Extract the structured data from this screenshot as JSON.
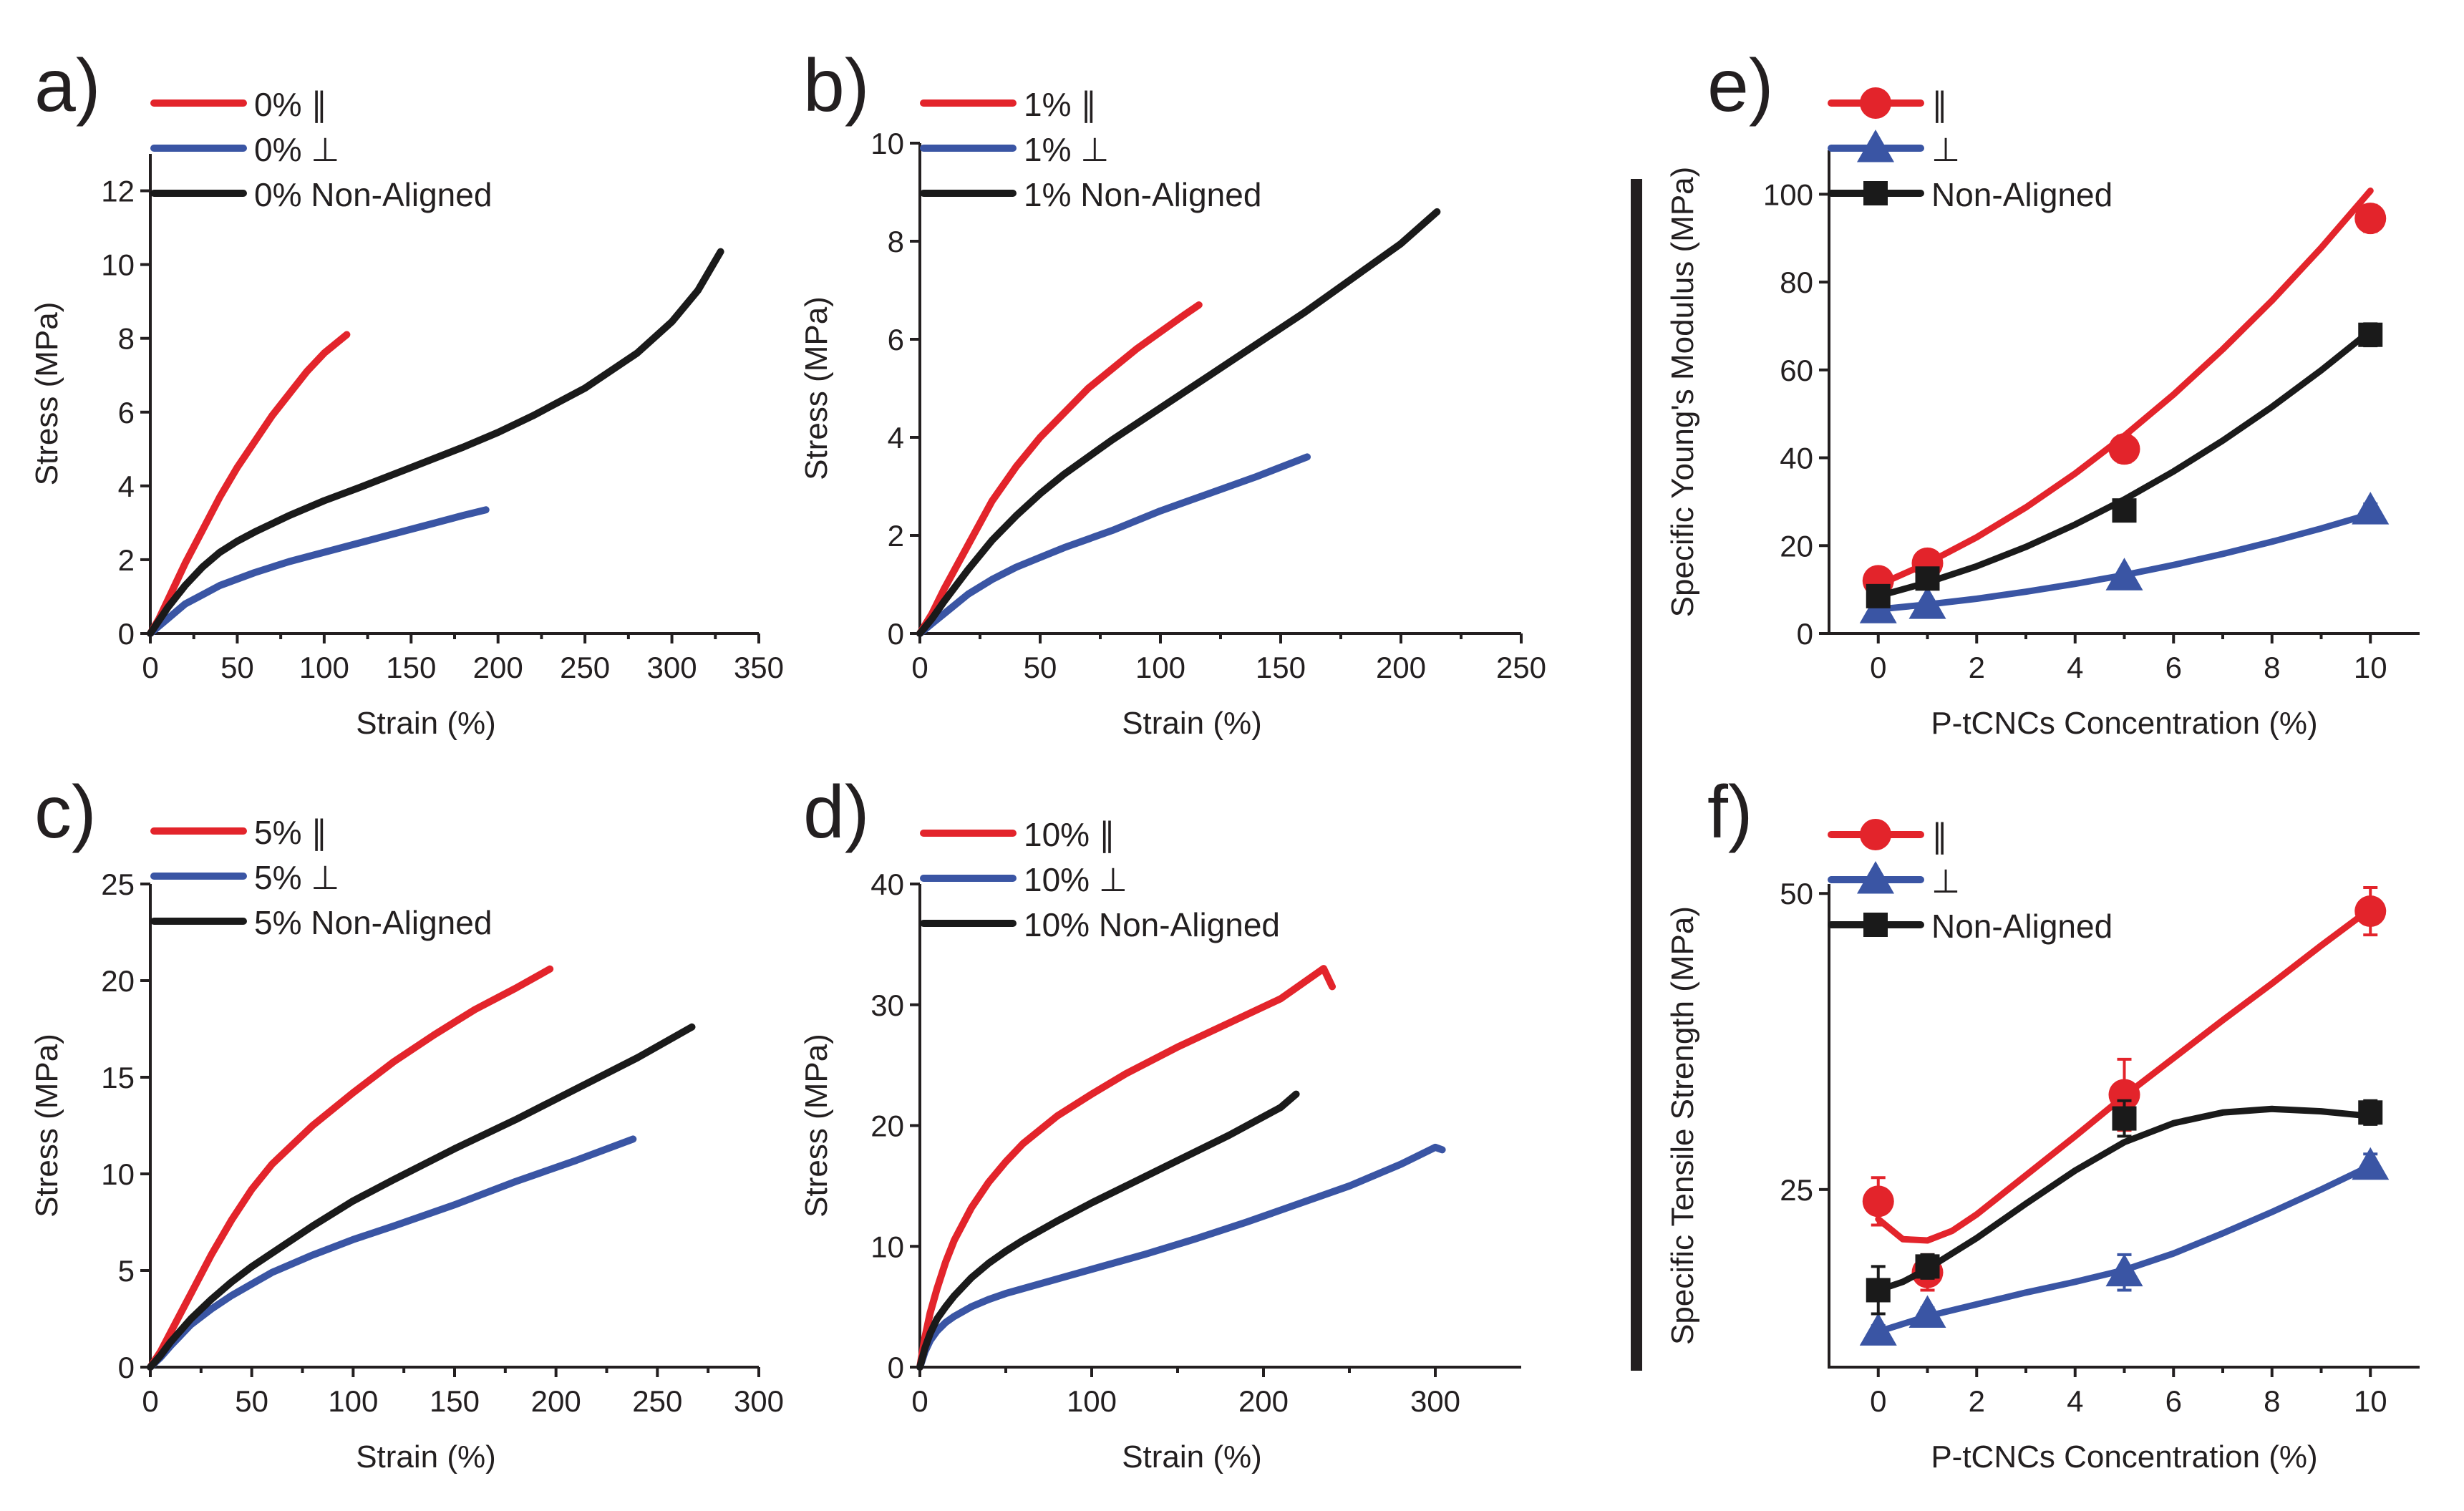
{
  "colors": {
    "parallel": "#e3242b",
    "perpendicular": "#3a55a4",
    "non_aligned": "#1a1a1a",
    "axis": "#231f20",
    "divider": "#231f20"
  },
  "chart_data": [
    {
      "id": "a",
      "panel_label": "a)",
      "type": "line",
      "xlabel": "Strain (%)",
      "ylabel": "Stress (MPa)",
      "xlim": [
        0,
        350
      ],
      "ylim": [
        0,
        13
      ],
      "xticks": [
        0,
        50,
        100,
        150,
        200,
        250,
        300,
        350
      ],
      "yticks": [
        0,
        2,
        4,
        6,
        8,
        10,
        12
      ],
      "series": [
        {
          "name": "0% ∥",
          "color_key": "parallel",
          "x": [
            0,
            5,
            10,
            20,
            30,
            40,
            50,
            60,
            70,
            80,
            90,
            100,
            113
          ],
          "y": [
            0,
            0.4,
            0.9,
            1.9,
            2.8,
            3.7,
            4.5,
            5.2,
            5.9,
            6.5,
            7.1,
            7.6,
            8.1
          ]
        },
        {
          "name": "0% ⊥",
          "color_key": "perpendicular",
          "x": [
            0,
            5,
            10,
            20,
            30,
            40,
            60,
            80,
            100,
            120,
            140,
            160,
            180,
            193
          ],
          "y": [
            0,
            0.2,
            0.4,
            0.8,
            1.05,
            1.3,
            1.65,
            1.95,
            2.2,
            2.45,
            2.7,
            2.95,
            3.2,
            3.35
          ]
        },
        {
          "name": "0% Non-Aligned",
          "color_key": "non_aligned",
          "x": [
            0,
            5,
            10,
            20,
            30,
            40,
            50,
            60,
            80,
            100,
            120,
            150,
            180,
            200,
            220,
            250,
            280,
            300,
            315,
            328
          ],
          "y": [
            0,
            0.35,
            0.7,
            1.3,
            1.8,
            2.2,
            2.5,
            2.75,
            3.2,
            3.6,
            3.95,
            4.5,
            5.05,
            5.45,
            5.9,
            6.65,
            7.6,
            8.45,
            9.3,
            10.35
          ]
        }
      ]
    },
    {
      "id": "b",
      "panel_label": "b)",
      "type": "line",
      "xlabel": "Strain (%)",
      "ylabel": "Stress (MPa)",
      "xlim": [
        0,
        250
      ],
      "ylim": [
        0,
        10
      ],
      "xticks": [
        0,
        50,
        100,
        150,
        200,
        250
      ],
      "yticks": [
        0,
        2,
        4,
        6,
        8,
        10
      ],
      "series": [
        {
          "name": "1% ∥",
          "color_key": "parallel",
          "x": [
            0,
            5,
            10,
            20,
            30,
            40,
            50,
            60,
            70,
            80,
            90,
            100,
            110,
            116
          ],
          "y": [
            0,
            0.4,
            0.9,
            1.8,
            2.7,
            3.4,
            4.0,
            4.5,
            5.0,
            5.4,
            5.8,
            6.15,
            6.5,
            6.7
          ]
        },
        {
          "name": "1% ⊥",
          "color_key": "perpendicular",
          "x": [
            0,
            5,
            10,
            20,
            30,
            40,
            50,
            60,
            80,
            100,
            120,
            140,
            161
          ],
          "y": [
            0,
            0.2,
            0.4,
            0.8,
            1.1,
            1.35,
            1.55,
            1.75,
            2.1,
            2.5,
            2.85,
            3.2,
            3.6
          ]
        },
        {
          "name": "1% Non-Aligned",
          "color_key": "non_aligned",
          "x": [
            0,
            5,
            10,
            20,
            30,
            40,
            50,
            60,
            80,
            100,
            120,
            140,
            160,
            180,
            200,
            215
          ],
          "y": [
            0,
            0.3,
            0.65,
            1.3,
            1.9,
            2.4,
            2.85,
            3.25,
            3.95,
            4.6,
            5.25,
            5.9,
            6.55,
            7.25,
            7.95,
            8.6
          ]
        }
      ]
    },
    {
      "id": "c",
      "panel_label": "c)",
      "type": "line",
      "xlabel": "Strain (%)",
      "ylabel": "Stress (MPa)",
      "xlim": [
        0,
        300
      ],
      "ylim": [
        0,
        25
      ],
      "xticks": [
        0,
        50,
        100,
        150,
        200,
        250,
        300
      ],
      "yticks": [
        0,
        5,
        10,
        15,
        20,
        25
      ],
      "series": [
        {
          "name": "5% ∥",
          "color_key": "parallel",
          "x": [
            0,
            5,
            10,
            20,
            30,
            40,
            50,
            60,
            80,
            100,
            120,
            140,
            160,
            180,
            197
          ],
          "y": [
            0,
            0.8,
            1.8,
            3.8,
            5.8,
            7.6,
            9.2,
            10.5,
            12.5,
            14.2,
            15.8,
            17.2,
            18.5,
            19.6,
            20.6
          ]
        },
        {
          "name": "5% ⊥",
          "color_key": "perpendicular",
          "x": [
            0,
            5,
            10,
            20,
            30,
            40,
            50,
            60,
            80,
            100,
            120,
            150,
            180,
            210,
            238
          ],
          "y": [
            0,
            0.5,
            1.1,
            2.2,
            3.0,
            3.7,
            4.3,
            4.9,
            5.8,
            6.6,
            7.3,
            8.4,
            9.6,
            10.7,
            11.8
          ]
        },
        {
          "name": "5% Non-Aligned",
          "color_key": "non_aligned",
          "x": [
            0,
            5,
            10,
            20,
            30,
            40,
            50,
            60,
            80,
            100,
            120,
            150,
            180,
            210,
            240,
            267
          ],
          "y": [
            0,
            0.6,
            1.3,
            2.5,
            3.5,
            4.4,
            5.2,
            5.9,
            7.3,
            8.6,
            9.7,
            11.3,
            12.8,
            14.4,
            16.0,
            17.6
          ]
        }
      ]
    },
    {
      "id": "d",
      "panel_label": "d)",
      "type": "line",
      "xlabel": "Strain (%)",
      "ylabel": "Stress (MPa)",
      "xlim": [
        0,
        350
      ],
      "ylim": [
        0,
        40
      ],
      "xticks": [
        0,
        100,
        200,
        300
      ],
      "yticks": [
        0,
        10,
        20,
        30,
        40
      ],
      "series": [
        {
          "name": "10% ∥",
          "color_key": "parallel",
          "x": [
            0,
            3,
            6,
            10,
            15,
            20,
            30,
            40,
            50,
            60,
            80,
            100,
            120,
            150,
            180,
            210,
            235,
            240
          ],
          "y": [
            0,
            2.5,
            4.5,
            6.5,
            8.7,
            10.5,
            13.2,
            15.3,
            17.0,
            18.5,
            20.8,
            22.6,
            24.3,
            26.5,
            28.5,
            30.5,
            33.0,
            31.5
          ]
        },
        {
          "name": "10% ⊥",
          "color_key": "perpendicular",
          "x": [
            0,
            3,
            6,
            10,
            15,
            20,
            30,
            40,
            50,
            60,
            80,
            100,
            130,
            160,
            190,
            220,
            250,
            280,
            300,
            304
          ],
          "y": [
            0,
            1.3,
            2.2,
            3.0,
            3.7,
            4.2,
            5.0,
            5.6,
            6.1,
            6.5,
            7.3,
            8.1,
            9.3,
            10.6,
            12.0,
            13.5,
            15.0,
            16.8,
            18.2,
            18.0
          ]
        },
        {
          "name": "10% Non-Aligned",
          "color_key": "non_aligned",
          "x": [
            0,
            3,
            6,
            10,
            15,
            20,
            30,
            40,
            50,
            60,
            80,
            100,
            120,
            150,
            180,
            210,
            219
          ],
          "y": [
            0,
            1.6,
            2.8,
            4.0,
            5.0,
            5.9,
            7.4,
            8.6,
            9.6,
            10.5,
            12.1,
            13.6,
            15.0,
            17.1,
            19.2,
            21.5,
            22.6
          ]
        }
      ]
    },
    {
      "id": "e",
      "panel_label": "e)",
      "type": "line",
      "xlabel": "P-tCNCs Concentration (%)",
      "ylabel": "Specific Young's Modulus (MPa)",
      "xlim": [
        -1,
        11
      ],
      "ylim": [
        0,
        110
      ],
      "xticks": [
        0,
        2,
        4,
        6,
        8,
        10
      ],
      "yticks": [
        0,
        20,
        40,
        60,
        80,
        100
      ],
      "series": [
        {
          "name": "∥",
          "color_key": "parallel",
          "marker": "circle",
          "x": [
            0,
            1,
            5,
            10
          ],
          "y": [
            12,
            16,
            42,
            94.5
          ],
          "yerr": [
            1.5,
            1.5,
            3,
            3
          ],
          "fit_x": [
            0,
            1,
            2,
            3,
            4,
            5,
            6,
            7,
            8,
            9,
            10
          ],
          "fit_y": [
            11,
            16,
            21.9,
            28.7,
            36.4,
            45,
            54.4,
            64.7,
            75.8,
            87.8,
            100.8
          ]
        },
        {
          "name": "⊥",
          "color_key": "perpendicular",
          "marker": "triangle",
          "x": [
            0,
            1,
            5,
            10
          ],
          "y": [
            5.5,
            6.5,
            13,
            28
          ],
          "yerr": [
            1,
            1,
            1,
            1.5
          ],
          "fit_x": [
            0,
            1,
            2,
            3,
            4,
            5,
            6,
            7,
            8,
            9,
            10
          ],
          "fit_y": [
            5.5,
            6.6,
            7.9,
            9.5,
            11.3,
            13.3,
            15.6,
            18.1,
            20.9,
            23.9,
            27.2
          ]
        },
        {
          "name": "Non-Aligned",
          "color_key": "non_aligned",
          "marker": "square",
          "x": [
            0,
            1,
            5,
            10
          ],
          "y": [
            8.5,
            12.5,
            28,
            68
          ],
          "yerr": [
            1.5,
            1.5,
            2,
            2.5
          ],
          "fit_x": [
            0,
            1,
            2,
            3,
            4,
            5,
            6,
            7,
            8,
            9,
            10
          ],
          "fit_y": [
            8.5,
            11.6,
            15.3,
            19.7,
            24.8,
            30.5,
            36.9,
            43.9,
            51.6,
            59.9,
            68.9
          ]
        }
      ]
    },
    {
      "id": "f",
      "panel_label": "f)",
      "type": "line",
      "xlabel": "P-tCNCs Concentration (%)",
      "ylabel": "Specific Tensile Strength (MPa)",
      "xlim": [
        -1,
        11
      ],
      "ylim": [
        10,
        50.8
      ],
      "xticks": [
        0,
        2,
        4,
        6,
        8,
        10
      ],
      "yticks": [
        25,
        50
      ],
      "series": [
        {
          "name": "∥",
          "color_key": "parallel",
          "marker": "circle",
          "x": [
            0,
            1,
            5,
            10
          ],
          "y": [
            24,
            18,
            33,
            48.5
          ],
          "yerr": [
            2,
            1.5,
            3,
            2
          ],
          "fit_x": [
            0,
            0.5,
            1,
            1.5,
            2,
            3,
            4,
            5,
            6,
            7,
            8,
            9,
            10
          ],
          "fit_y": [
            22.5,
            20.8,
            20.7,
            21.5,
            22.9,
            26.2,
            29.5,
            32.9,
            36.1,
            39.3,
            42.4,
            45.6,
            48.7
          ]
        },
        {
          "name": "⊥",
          "color_key": "perpendicular",
          "marker": "triangle",
          "x": [
            0,
            1,
            5,
            10
          ],
          "y": [
            13,
            14.5,
            18,
            27
          ],
          "yerr": [
            0.5,
            0.5,
            1.5,
            1
          ],
          "fit_x": [
            0,
            1,
            2,
            3,
            4,
            5,
            6,
            7,
            8,
            9,
            10
          ],
          "fit_y": [
            13,
            14.3,
            15.3,
            16.3,
            17.2,
            18.2,
            19.6,
            21.3,
            23.1,
            25.0,
            27.0
          ]
        },
        {
          "name": "Non-Aligned",
          "color_key": "non_aligned",
          "marker": "square",
          "x": [
            0,
            1,
            5,
            10
          ],
          "y": [
            16.5,
            18.5,
            31,
            31.5
          ],
          "yerr": [
            2,
            1,
            1.5,
            1
          ],
          "fit_x": [
            0,
            0.5,
            1,
            2,
            3,
            4,
            5,
            6,
            7,
            8,
            9,
            10
          ],
          "fit_y": [
            16.5,
            17.2,
            18.3,
            20.9,
            23.8,
            26.6,
            29.0,
            30.6,
            31.5,
            31.8,
            31.6,
            31.2
          ]
        }
      ]
    }
  ]
}
